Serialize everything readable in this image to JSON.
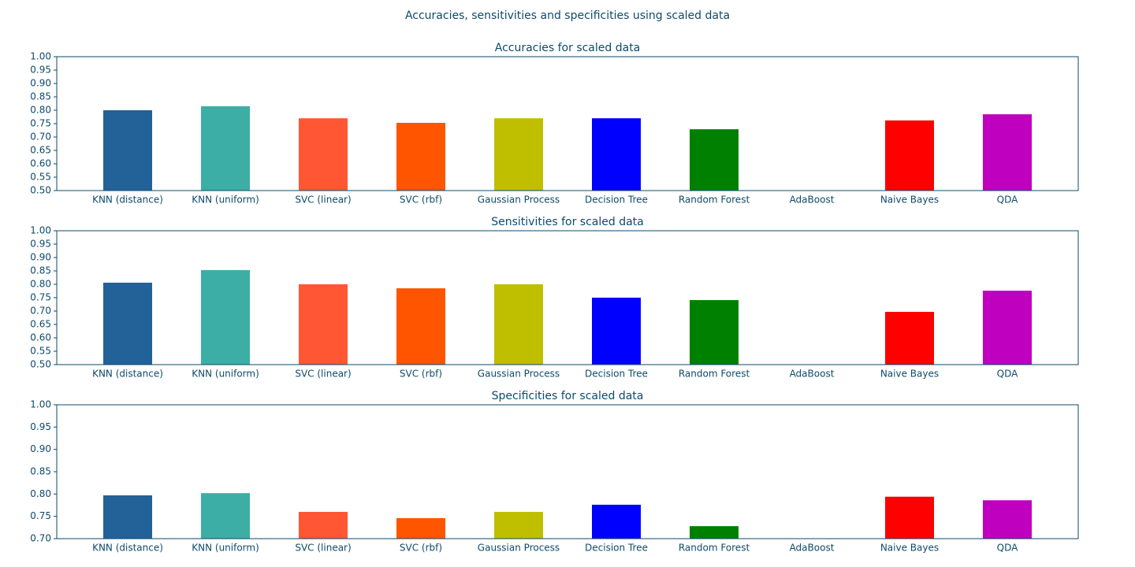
{
  "suptitle": "Accuracies, sensitivities and specificities using scaled data",
  "chart_data": [
    {
      "type": "bar",
      "title": "Accuracies for scaled data",
      "categories": [
        "KNN (distance)",
        "KNN (uniform)",
        "SVC (linear)",
        "SVC (rbf)",
        "Gaussian Process",
        "Decision Tree",
        "Random Forest",
        "AdaBoost",
        "Naive Bayes",
        "QDA"
      ],
      "values": [
        0.8,
        0.815,
        0.77,
        0.753,
        0.77,
        0.77,
        0.729,
        null,
        0.762,
        0.785
      ],
      "colors": [
        "#236199",
        "#3daea5",
        "#ff5733",
        "#ff5500",
        "#bfbf00",
        "#0000ff",
        "#008000",
        null,
        "#ff0000",
        "#bf00bf"
      ],
      "ylim": [
        0.5,
        1.0
      ],
      "yticks": [
        {
          "value": 0.5,
          "label": "0.50"
        },
        {
          "value": 0.55,
          "label": "0.55"
        },
        {
          "value": 0.6,
          "label": "0.60"
        },
        {
          "value": 0.65,
          "label": "0.65"
        },
        {
          "value": 0.7,
          "label": "0.70"
        },
        {
          "value": 0.75,
          "label": "0.75"
        },
        {
          "value": 0.8,
          "label": "0.80"
        },
        {
          "value": 0.85,
          "label": "0.85"
        },
        {
          "value": 0.9,
          "label": "0.90"
        },
        {
          "value": 0.95,
          "label": "0.95"
        },
        {
          "value": 1.0,
          "label": "1.00"
        }
      ]
    },
    {
      "type": "bar",
      "title": "Sensitivities for scaled data",
      "categories": [
        "KNN (distance)",
        "KNN (uniform)",
        "SVC (linear)",
        "SVC (rbf)",
        "Gaussian Process",
        "Decision Tree",
        "Random Forest",
        "AdaBoost",
        "Naive Bayes",
        "QDA"
      ],
      "values": [
        0.806,
        0.853,
        0.8,
        0.785,
        0.8,
        0.75,
        0.741,
        null,
        0.697,
        0.776
      ],
      "colors": [
        "#236199",
        "#3daea5",
        "#ff5733",
        "#ff5500",
        "#bfbf00",
        "#0000ff",
        "#008000",
        null,
        "#ff0000",
        "#bf00bf"
      ],
      "ylim": [
        0.5,
        1.0
      ],
      "yticks": [
        {
          "value": 0.5,
          "label": "0.50"
        },
        {
          "value": 0.55,
          "label": "0.55"
        },
        {
          "value": 0.6,
          "label": "0.60"
        },
        {
          "value": 0.65,
          "label": "0.65"
        },
        {
          "value": 0.7,
          "label": "0.70"
        },
        {
          "value": 0.75,
          "label": "0.75"
        },
        {
          "value": 0.8,
          "label": "0.80"
        },
        {
          "value": 0.85,
          "label": "0.85"
        },
        {
          "value": 0.9,
          "label": "0.90"
        },
        {
          "value": 0.95,
          "label": "0.95"
        },
        {
          "value": 1.0,
          "label": "1.00"
        }
      ]
    },
    {
      "type": "bar",
      "title": "Specificities for scaled data",
      "categories": [
        "KNN (distance)",
        "KNN (uniform)",
        "SVC (linear)",
        "SVC (rbf)",
        "Gaussian Process",
        "Decision Tree",
        "Random Forest",
        "AdaBoost",
        "Naive Bayes",
        "QDA"
      ],
      "values": [
        0.797,
        0.802,
        0.76,
        0.746,
        0.76,
        0.776,
        0.728,
        null,
        0.794,
        0.786
      ],
      "colors": [
        "#236199",
        "#3daea5",
        "#ff5733",
        "#ff5500",
        "#bfbf00",
        "#0000ff",
        "#008000",
        null,
        "#ff0000",
        "#bf00bf"
      ],
      "ylim": [
        0.7,
        1.0
      ],
      "yticks": [
        {
          "value": 0.7,
          "label": "0.70"
        },
        {
          "value": 0.75,
          "label": "0.75"
        },
        {
          "value": 0.8,
          "label": "0.80"
        },
        {
          "value": 0.85,
          "label": "0.85"
        },
        {
          "value": 0.9,
          "label": "0.90"
        },
        {
          "value": 0.95,
          "label": "0.95"
        },
        {
          "value": 1.0,
          "label": "1.00"
        }
      ]
    }
  ]
}
